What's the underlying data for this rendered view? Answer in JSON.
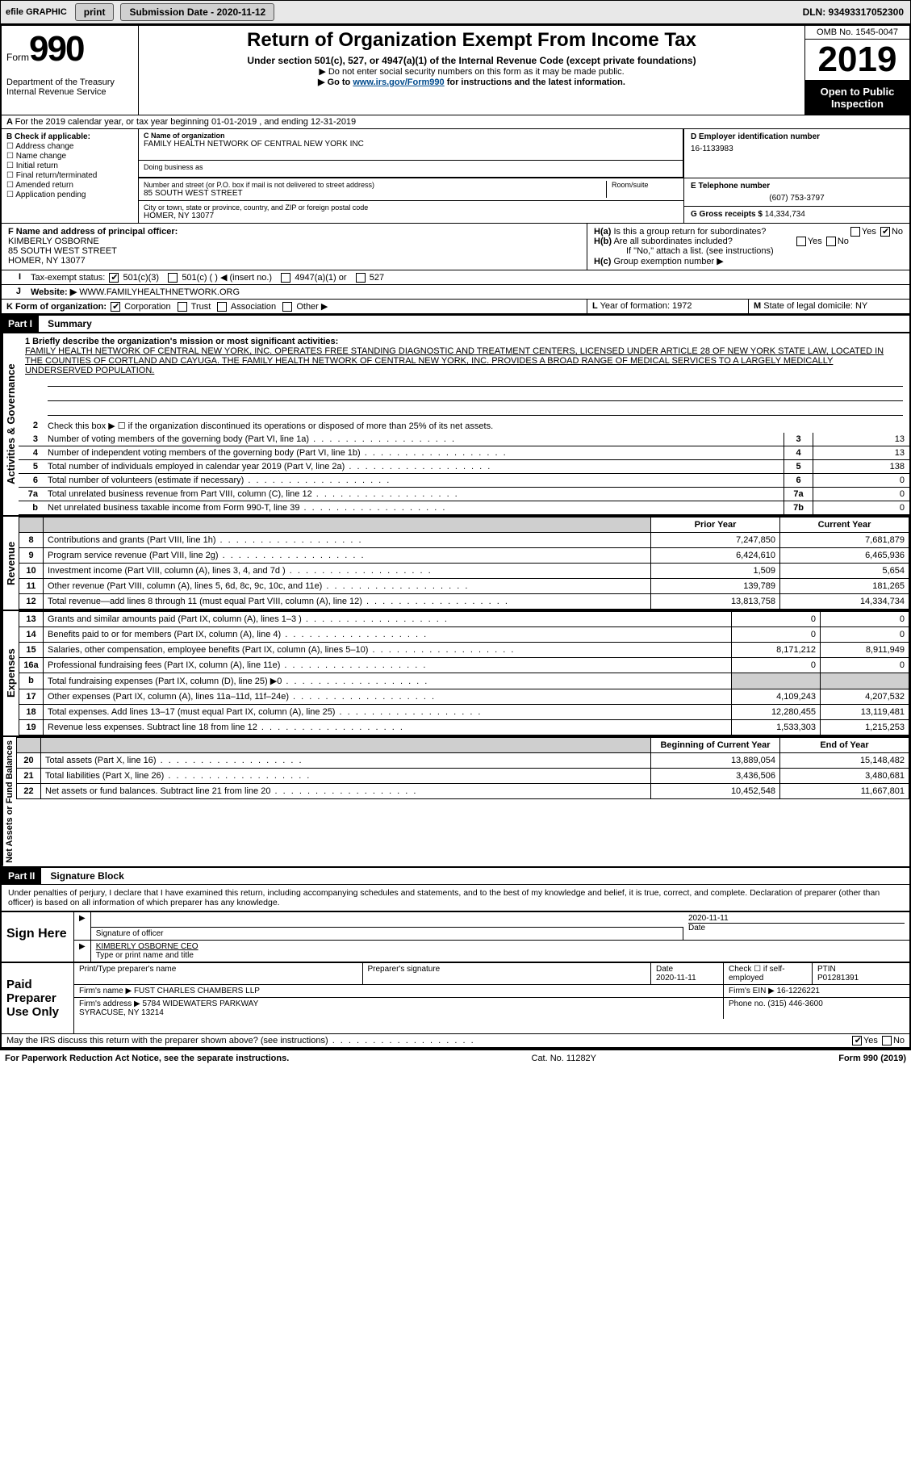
{
  "topbar": {
    "efile": "efile GRAPHIC",
    "print": "print",
    "submission": "Submission Date - 2020-11-12",
    "dln": "DLN: 93493317052300"
  },
  "header": {
    "form_word": "Form",
    "form_num": "990",
    "dept": "Department of the Treasury\nInternal Revenue Service",
    "title": "Return of Organization Exempt From Income Tax",
    "sub1": "Under section 501(c), 527, or 4947(a)(1) of the Internal Revenue Code (except private foundations)",
    "sub2": "Do not enter social security numbers on this form as it may be made public.",
    "sub3_pre": "Go to ",
    "sub3_link": "www.irs.gov/Form990",
    "sub3_post": " for instructions and the latest information.",
    "omb": "OMB No. 1545-0047",
    "year": "2019",
    "open": "Open to Public Inspection"
  },
  "rowA": "For the 2019 calendar year, or tax year beginning 01-01-2019   , and ending 12-31-2019",
  "boxB": {
    "label": "B Check if applicable:",
    "items": [
      "Address change",
      "Name change",
      "Initial return",
      "Final return/terminated",
      "Amended return",
      "Application pending"
    ]
  },
  "boxC": {
    "name_lbl": "C Name of organization",
    "name": "FAMILY HEALTH NETWORK OF CENTRAL NEW YORK INC",
    "dba_lbl": "Doing business as",
    "addr_lbl": "Number and street (or P.O. box if mail is not delivered to street address)",
    "room_lbl": "Room/suite",
    "addr": "85 SOUTH WEST STREET",
    "city_lbl": "City or town, state or province, country, and ZIP or foreign postal code",
    "city": "HOMER, NY  13077"
  },
  "boxD": {
    "lbl": "D Employer identification number",
    "val": "16-1133983"
  },
  "boxE": {
    "lbl": "E Telephone number",
    "val": "(607) 753-3797"
  },
  "boxG": {
    "lbl": "G Gross receipts $",
    "val": "14,334,734"
  },
  "boxF": {
    "lbl": "F  Name and address of principal officer:",
    "name": "KIMBERLY OSBORNE",
    "addr1": "85 SOUTH WEST STREET",
    "addr2": "HOMER, NY  13077"
  },
  "boxH": {
    "a": "Is this a group return for subordinates?",
    "b": "Are all subordinates included?",
    "note": "If \"No,\" attach a list. (see instructions)",
    "c": "Group exemption number ▶"
  },
  "boxI": {
    "lbl": "Tax-exempt status:",
    "opts": [
      "501(c)(3)",
      "501(c) (  ) ◀ (insert no.)",
      "4947(a)(1) or",
      "527"
    ]
  },
  "boxJ": {
    "lbl": "Website: ▶",
    "val": "WWW.FAMILYHEALTHNETWORK.ORG"
  },
  "boxK": {
    "lbl": "K Form of organization:",
    "opts": [
      "Corporation",
      "Trust",
      "Association",
      "Other ▶"
    ]
  },
  "boxL": "Year of formation: 1972",
  "boxM": "State of legal domicile: NY",
  "part1": {
    "bar": "Part I",
    "title": "Summary"
  },
  "mission_lbl": "1   Briefly describe the organization's mission or most significant activities:",
  "mission": "FAMILY HEALTH NETWORK OF CENTRAL NEW YORK, INC. OPERATES FREE STANDING DIAGNOSTIC AND TREATMENT CENTERS, LICENSED UNDER ARTICLE 28 OF NEW YORK STATE LAW, LOCATED IN THE COUNTIES OF CORTLAND AND CAYUGA. THE FAMILY HEALTH NETWORK OF CENTRAL NEW YORK, INC. PROVIDES A BROAD RANGE OF MEDICAL SERVICES TO A LARGELY MEDICALLY UNDERSERVED POPULATION.",
  "gov": {
    "l2": "Check this box ▶ ☐  if the organization discontinued its operations or disposed of more than 25% of its net assets.",
    "rows": [
      {
        "n": "3",
        "d": "Number of voting members of the governing body (Part VI, line 1a)",
        "b": "3",
        "v": "13"
      },
      {
        "n": "4",
        "d": "Number of independent voting members of the governing body (Part VI, line 1b)",
        "b": "4",
        "v": "13"
      },
      {
        "n": "5",
        "d": "Total number of individuals employed in calendar year 2019 (Part V, line 2a)",
        "b": "5",
        "v": "138"
      },
      {
        "n": "6",
        "d": "Total number of volunteers (estimate if necessary)",
        "b": "6",
        "v": "0"
      },
      {
        "n": "7a",
        "d": "Total unrelated business revenue from Part VIII, column (C), line 12",
        "b": "7a",
        "v": "0"
      },
      {
        "n": "b",
        "d": "Net unrelated business taxable income from Form 990-T, line 39",
        "b": "7b",
        "v": "0"
      }
    ]
  },
  "rev": {
    "head": [
      "Prior Year",
      "Current Year"
    ],
    "rows": [
      {
        "n": "8",
        "d": "Contributions and grants (Part VIII, line 1h)",
        "p": "7,247,850",
        "c": "7,681,879"
      },
      {
        "n": "9",
        "d": "Program service revenue (Part VIII, line 2g)",
        "p": "6,424,610",
        "c": "6,465,936"
      },
      {
        "n": "10",
        "d": "Investment income (Part VIII, column (A), lines 3, 4, and 7d )",
        "p": "1,509",
        "c": "5,654"
      },
      {
        "n": "11",
        "d": "Other revenue (Part VIII, column (A), lines 5, 6d, 8c, 9c, 10c, and 11e)",
        "p": "139,789",
        "c": "181,265"
      },
      {
        "n": "12",
        "d": "Total revenue—add lines 8 through 11 (must equal Part VIII, column (A), line 12)",
        "p": "13,813,758",
        "c": "14,334,734"
      }
    ]
  },
  "exp": {
    "rows": [
      {
        "n": "13",
        "d": "Grants and similar amounts paid (Part IX, column (A), lines 1–3 )",
        "p": "0",
        "c": "0"
      },
      {
        "n": "14",
        "d": "Benefits paid to or for members (Part IX, column (A), line 4)",
        "p": "0",
        "c": "0"
      },
      {
        "n": "15",
        "d": "Salaries, other compensation, employee benefits (Part IX, column (A), lines 5–10)",
        "p": "8,171,212",
        "c": "8,911,949"
      },
      {
        "n": "16a",
        "d": "Professional fundraising fees (Part IX, column (A), line 11e)",
        "p": "0",
        "c": "0"
      },
      {
        "n": "b",
        "d": "Total fundraising expenses (Part IX, column (D), line 25) ▶0",
        "p": "",
        "c": "",
        "shade": true
      },
      {
        "n": "17",
        "d": "Other expenses (Part IX, column (A), lines 11a–11d, 11f–24e)",
        "p": "4,109,243",
        "c": "4,207,532"
      },
      {
        "n": "18",
        "d": "Total expenses. Add lines 13–17 (must equal Part IX, column (A), line 25)",
        "p": "12,280,455",
        "c": "13,119,481"
      },
      {
        "n": "19",
        "d": "Revenue less expenses. Subtract line 18 from line 12",
        "p": "1,533,303",
        "c": "1,215,253"
      }
    ]
  },
  "net": {
    "head": [
      "Beginning of Current Year",
      "End of Year"
    ],
    "rows": [
      {
        "n": "20",
        "d": "Total assets (Part X, line 16)",
        "p": "13,889,054",
        "c": "15,148,482"
      },
      {
        "n": "21",
        "d": "Total liabilities (Part X, line 26)",
        "p": "3,436,506",
        "c": "3,480,681"
      },
      {
        "n": "22",
        "d": "Net assets or fund balances. Subtract line 21 from line 20",
        "p": "10,452,548",
        "c": "11,667,801"
      }
    ]
  },
  "part2": {
    "bar": "Part II",
    "title": "Signature Block"
  },
  "perjury": "Under penalties of perjury, I declare that I have examined this return, including accompanying schedules and statements, and to the best of my knowledge and belief, it is true, correct, and complete. Declaration of preparer (other than officer) is based on all information of which preparer has any knowledge.",
  "sign": {
    "left": "Sign Here",
    "sig_lbl": "Signature of officer",
    "date_lbl": "Date",
    "date": "2020-11-11",
    "name": "KIMBERLY OSBORNE CEO",
    "name_lbl": "Type or print name and title"
  },
  "prep": {
    "left": "Paid Preparer Use Only",
    "h": [
      "Print/Type preparer's name",
      "Preparer's signature",
      "Date",
      "",
      "PTIN"
    ],
    "date": "2020-11-11",
    "chk": "Check ☐ if self-employed",
    "ptin": "P01281391",
    "firm_lbl": "Firm's name   ▶",
    "firm": "FUST CHARLES CHAMBERS LLP",
    "ein_lbl": "Firm's EIN ▶",
    "ein": "16-1226221",
    "addr_lbl": "Firm's address ▶",
    "addr": "5784 WIDEWATERS PARKWAY\nSYRACUSE, NY  13214",
    "phone_lbl": "Phone no.",
    "phone": "(315) 446-3600"
  },
  "discuss": "May the IRS discuss this return with the preparer shown above? (see instructions)",
  "footer": {
    "l": "For Paperwork Reduction Act Notice, see the separate instructions.",
    "m": "Cat. No. 11282Y",
    "r": "Form 990 (2019)"
  },
  "vlabels": {
    "gov": "Activities & Governance",
    "rev": "Revenue",
    "exp": "Expenses",
    "net": "Net Assets or Fund Balances"
  }
}
